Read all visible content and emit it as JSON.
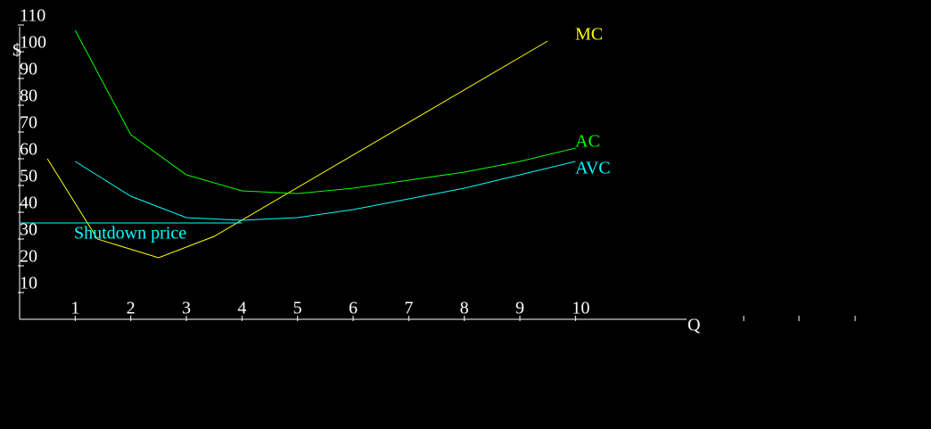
{
  "chart_data": {
    "type": "line",
    "y_label": "$",
    "x_label": "Q",
    "xlim": [
      0,
      12
    ],
    "ylim": [
      0,
      110
    ],
    "xticks": [
      1,
      2,
      3,
      4,
      5,
      6,
      7,
      8,
      9,
      10
    ],
    "yticks": [
      10,
      20,
      30,
      40,
      50,
      60,
      70,
      80,
      90,
      100,
      110
    ],
    "series": [
      {
        "name": "MC",
        "color": "#ffff00",
        "x": [
          0.5,
          1.4,
          2.5,
          3.5,
          9.5
        ],
        "values": [
          60,
          30,
          23,
          31,
          104
        ]
      },
      {
        "name": "AC",
        "color": "#00ff00",
        "x": [
          1,
          2,
          3,
          4,
          5,
          6,
          7,
          8,
          9,
          10
        ],
        "values": [
          108,
          69,
          54,
          48,
          47,
          49,
          52,
          55,
          59,
          64
        ]
      },
      {
        "name": "AVC",
        "color": "#00ffff",
        "x": [
          1,
          2,
          3,
          4,
          5,
          6,
          7,
          8,
          9,
          10
        ],
        "values": [
          59,
          46,
          38,
          37,
          38,
          41,
          45,
          49,
          54,
          59
        ]
      },
      {
        "name": "Shutdown price",
        "color": "#00ffff",
        "x": [
          0,
          4
        ],
        "values": [
          36,
          36
        ]
      }
    ]
  }
}
